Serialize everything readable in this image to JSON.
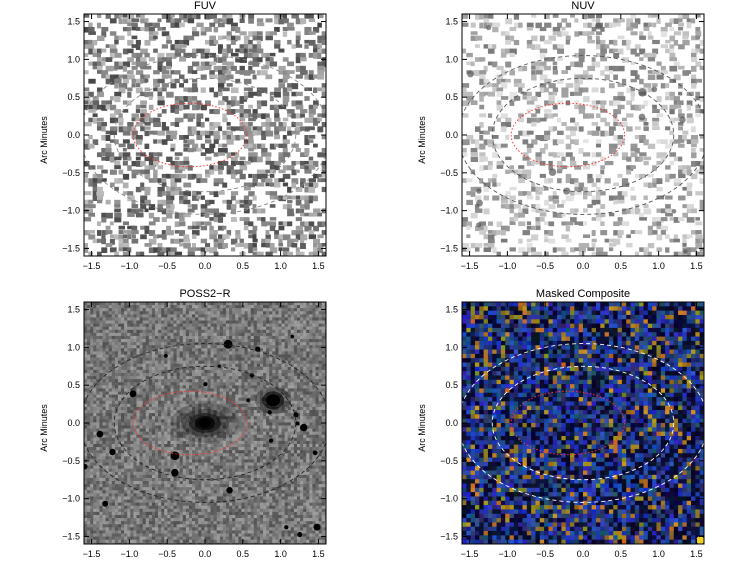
{
  "panels": [
    {
      "id": "fuv",
      "title": "FUV",
      "ylabel": "Arc Minutes",
      "style": "mono-dark",
      "seed": 11,
      "ellipse_color": "#888888"
    },
    {
      "id": "nuv",
      "title": "NUV",
      "ylabel": "Arc Minutes",
      "style": "mono-light",
      "seed": 23,
      "ellipse_color": "#555555"
    },
    {
      "id": "poss",
      "title": "POSS2−R",
      "ylabel": "Arc Minutes",
      "style": "optical",
      "seed": 37,
      "ellipse_color": "#222222"
    },
    {
      "id": "comp",
      "title": "Masked Composite",
      "ylabel": "Arc Minutes",
      "style": "composite",
      "seed": 53,
      "ellipse_color": "#ffffff"
    }
  ],
  "axis": {
    "x_range": [
      -1.6,
      1.6
    ],
    "y_range": [
      -1.6,
      1.6
    ],
    "x_ticks": [
      -1.5,
      -1.0,
      -0.5,
      0.0,
      0.5,
      1.0,
      1.5
    ],
    "x_tick_labels": [
      "−1.5",
      "−1.0",
      "−0.5",
      "0.0",
      "0.5",
      "1.0",
      "1.5"
    ],
    "y_ticks": [
      1.5,
      1.0,
      0.5,
      0.0,
      -0.5,
      -1.0,
      -1.5
    ],
    "y_tick_labels": [
      "1.5",
      "1.0",
      "0.5",
      "0.0",
      "−0.5",
      "−1.0",
      "−1.5"
    ]
  },
  "ellipses": {
    "inner": {
      "cx": -0.2,
      "cy": 0.0,
      "rx": 0.75,
      "ry": 0.42,
      "color": "#ff3333"
    },
    "outer": [
      {
        "cx": 0.0,
        "cy": 0.0,
        "rx": 1.2,
        "ry": 0.75
      },
      {
        "cx": 0.0,
        "cy": 0.0,
        "rx": 1.65,
        "ry": 1.05
      }
    ]
  },
  "colors": {
    "composite_blue": "#1f3a8a",
    "composite_yellow": "#c9a227",
    "optical_bg": "#9a9a9a"
  }
}
